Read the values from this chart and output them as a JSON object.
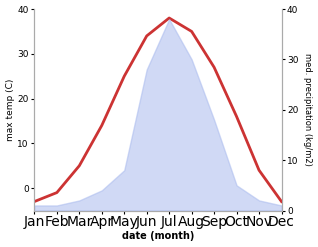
{
  "months": [
    "Jan",
    "Feb",
    "Mar",
    "Apr",
    "May",
    "Jun",
    "Jul",
    "Aug",
    "Sep",
    "Oct",
    "Nov",
    "Dec"
  ],
  "month_indices": [
    1,
    2,
    3,
    4,
    5,
    6,
    7,
    8,
    9,
    10,
    11,
    12
  ],
  "temperature": [
    -3,
    -1,
    5,
    14,
    25,
    34,
    38,
    35,
    27,
    16,
    4,
    -3
  ],
  "precipitation": [
    1,
    1,
    2,
    4,
    8,
    28,
    38,
    30,
    18,
    5,
    2,
    1
  ],
  "temp_color": "#cc3333",
  "precip_color": "#aabbee",
  "precip_fill_alpha": 0.55,
  "ylim_left": [
    -5,
    40
  ],
  "ylim_right": [
    0,
    40
  ],
  "yticks_left": [
    0,
    10,
    20,
    30,
    40
  ],
  "yticks_right": [
    0,
    10,
    20,
    30,
    40
  ],
  "xlabel": "date (month)",
  "ylabel_left": "max temp (C)",
  "ylabel_right": "med. precipitation (kg/m2)",
  "bg_color": "#ffffff",
  "line_width": 2.0
}
